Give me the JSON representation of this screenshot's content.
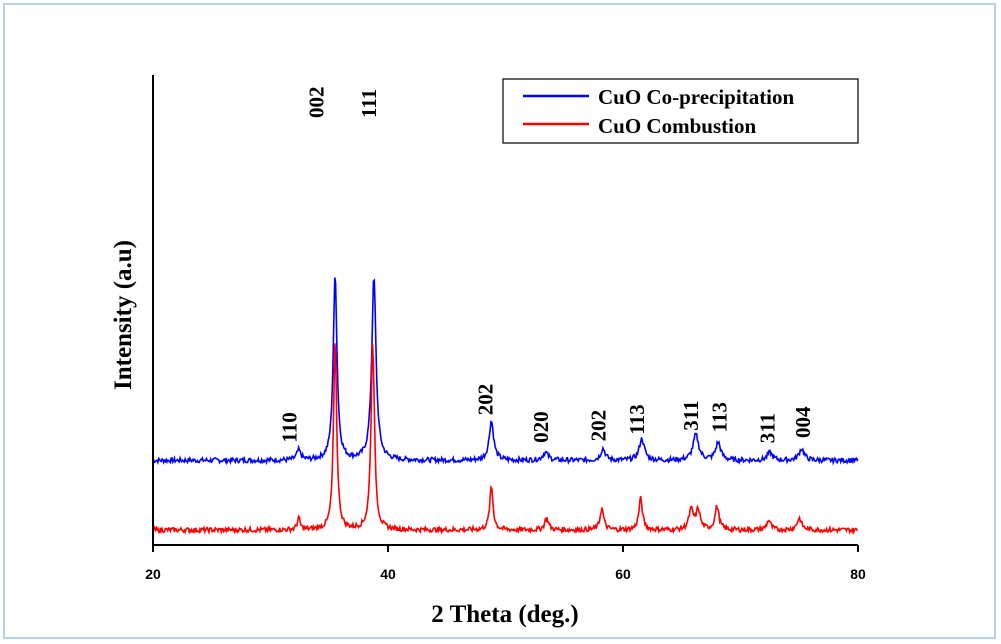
{
  "chart_data": {
    "type": "line",
    "xlabel": "2 Theta (deg.)",
    "ylabel": "Intensity (a.u)",
    "xlim": [
      20,
      80
    ],
    "xticks": [
      20,
      40,
      60,
      80
    ],
    "y_ticks_shown": false,
    "grid": false,
    "legend_position": "top-right",
    "series": [
      {
        "name": "CuO Co-precipitation",
        "color": "#0000ff",
        "baseline": 0.355,
        "peaks": [
          {
            "x": 32.4,
            "height": 0.05,
            "width": 0.35
          },
          {
            "x": 35.5,
            "height": 0.95,
            "width": 0.33
          },
          {
            "x": 38.8,
            "height": 0.93,
            "width": 0.38
          },
          {
            "x": 48.8,
            "height": 0.2,
            "width": 0.4
          },
          {
            "x": 53.4,
            "height": 0.04,
            "width": 0.5
          },
          {
            "x": 58.3,
            "height": 0.06,
            "width": 0.4
          },
          {
            "x": 61.6,
            "height": 0.11,
            "width": 0.45
          },
          {
            "x": 66.2,
            "height": 0.13,
            "width": 0.5
          },
          {
            "x": 68.1,
            "height": 0.09,
            "width": 0.45
          },
          {
            "x": 72.5,
            "height": 0.04,
            "width": 0.45
          },
          {
            "x": 75.2,
            "height": 0.06,
            "width": 0.45
          }
        ]
      },
      {
        "name": "CuO Combustion",
        "color": "#ff0000",
        "baseline": 0.0,
        "peaks": [
          {
            "x": 32.4,
            "height": 0.06,
            "width": 0.25
          },
          {
            "x": 35.5,
            "height": 0.97,
            "width": 0.28
          },
          {
            "x": 38.7,
            "height": 0.96,
            "width": 0.3
          },
          {
            "x": 48.8,
            "height": 0.22,
            "width": 0.3
          },
          {
            "x": 53.5,
            "height": 0.06,
            "width": 0.35
          },
          {
            "x": 58.2,
            "height": 0.11,
            "width": 0.32
          },
          {
            "x": 61.5,
            "height": 0.16,
            "width": 0.32
          },
          {
            "x": 65.8,
            "height": 0.1,
            "width": 0.4
          },
          {
            "x": 66.4,
            "height": 0.1,
            "width": 0.35
          },
          {
            "x": 68.0,
            "height": 0.12,
            "width": 0.35
          },
          {
            "x": 72.4,
            "height": 0.05,
            "width": 0.35
          },
          {
            "x": 75.0,
            "height": 0.06,
            "width": 0.4
          }
        ]
      }
    ],
    "annotations": [
      {
        "text": "002",
        "x": 33.9
      },
      {
        "text": "111",
        "x": 38.4
      },
      {
        "text": "110",
        "x": 31.6
      },
      {
        "text": "202",
        "x": 48.3
      },
      {
        "text": "020",
        "x": 53.0
      },
      {
        "text": "202",
        "x": 57.9
      },
      {
        "text": "113",
        "x": 61.2
      },
      {
        "text": "311",
        "x": 65.8
      },
      {
        "text": "113",
        "x": 68.2
      },
      {
        "text": "311",
        "x": 72.3
      },
      {
        "text": "004",
        "x": 75.3
      }
    ]
  }
}
